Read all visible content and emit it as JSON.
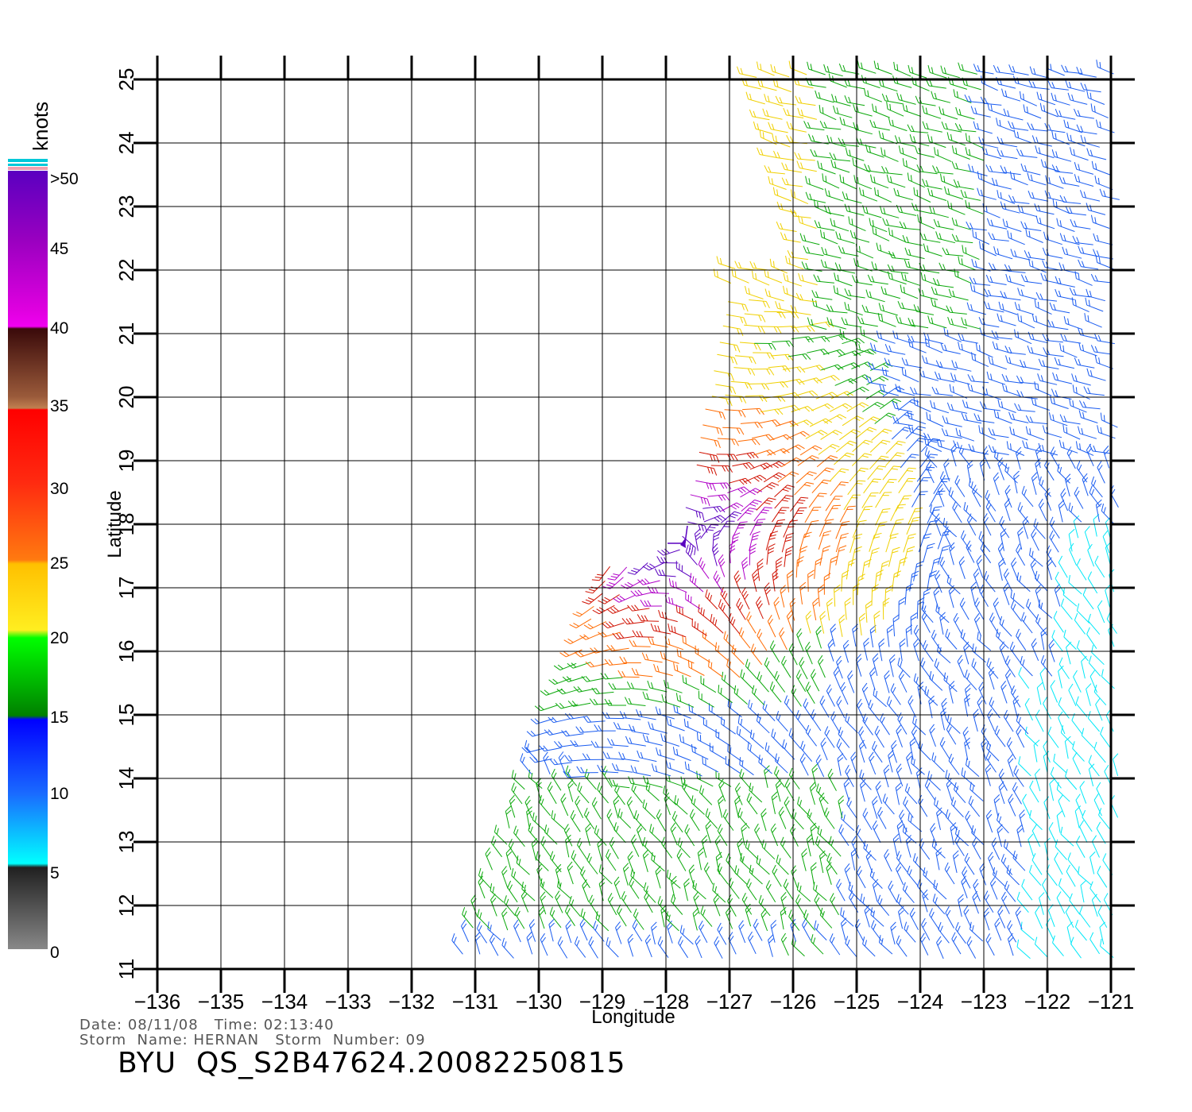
{
  "legend": {
    "unit_label": "knots",
    "tick_labels": [
      ">50",
      "45",
      "40",
      "35",
      "30",
      "25",
      "20",
      "15",
      "10",
      "5",
      "0"
    ]
  },
  "axes": {
    "xlabel": "Longitude",
    "ylabel": "Latitude",
    "lon_ticks": [
      "-136",
      "-135",
      "-134",
      "-133",
      "-132",
      "-131",
      "-130",
      "-129",
      "-128",
      "-127",
      "-126",
      "-125",
      "-124",
      "-123",
      "-122",
      "-121"
    ],
    "lat_ticks": [
      "11",
      "12",
      "13",
      "14",
      "15",
      "16",
      "17",
      "18",
      "19",
      "20",
      "21",
      "22",
      "23",
      "24",
      "25"
    ]
  },
  "info": {
    "date_label": "Date:",
    "date": "08/11/08",
    "time_label": "Time:",
    "time": "02:13:40",
    "storm_name_label": "Storm  Name:",
    "storm_name": "HERNAN",
    "storm_number_label": "Storm  Number:",
    "storm_number": "09"
  },
  "file_id": "BYU  QS_S2B47624.20082250815",
  "colors": {
    "calm": "#888888",
    "knots_5": "#00e8f8",
    "knots_10": "#1a5cf0",
    "knots_15": "#0aa80a",
    "knots_20": "#f0d000",
    "knots_25": "#ff6a00",
    "knots_30": "#d01000",
    "knots_35": "#6a2a10",
    "knots_40": "#b000c8",
    "knots_50": "#5a00c0"
  },
  "storm_center": {
    "lon": -127.7,
    "lat": 17.7
  }
}
